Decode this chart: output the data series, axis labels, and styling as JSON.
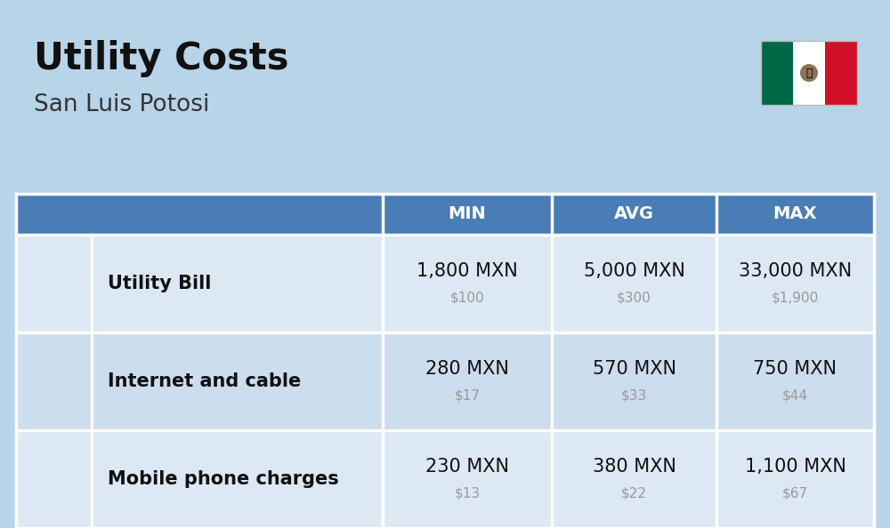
{
  "title": "Utility Costs",
  "subtitle": "San Luis Potosi",
  "background_color": "#b8d4e8",
  "header_color": "#4a7cb5",
  "header_text_color": "#ffffff",
  "row_colors": [
    "#dce8f4",
    "#ccdded"
  ],
  "col_headers": [
    "MIN",
    "AVG",
    "MAX"
  ],
  "rows": [
    {
      "label": "Utility Bill",
      "min_mxn": "1,800 MXN",
      "min_usd": "$100",
      "avg_mxn": "5,000 MXN",
      "avg_usd": "$300",
      "max_mxn": "33,000 MXN",
      "max_usd": "$1,900"
    },
    {
      "label": "Internet and cable",
      "min_mxn": "280 MXN",
      "min_usd": "$17",
      "avg_mxn": "570 MXN",
      "avg_usd": "$33",
      "max_mxn": "750 MXN",
      "max_usd": "$44"
    },
    {
      "label": "Mobile phone charges",
      "min_mxn": "230 MXN",
      "min_usd": "$13",
      "avg_mxn": "380 MXN",
      "avg_usd": "$22",
      "max_mxn": "1,100 MXN",
      "max_usd": "$67"
    }
  ],
  "mxn_fontsize": 15,
  "usd_fontsize": 11,
  "label_fontsize": 15,
  "header_fontsize": 14,
  "title_fontsize": 30,
  "subtitle_fontsize": 19,
  "usd_color": "#999999",
  "label_color": "#111111",
  "mxn_color": "#111111",
  "title_color": "#111111",
  "subtitle_color": "#333333",
  "flag_green": "#006847",
  "flag_white": "#ffffff",
  "flag_red": "#ce1126"
}
